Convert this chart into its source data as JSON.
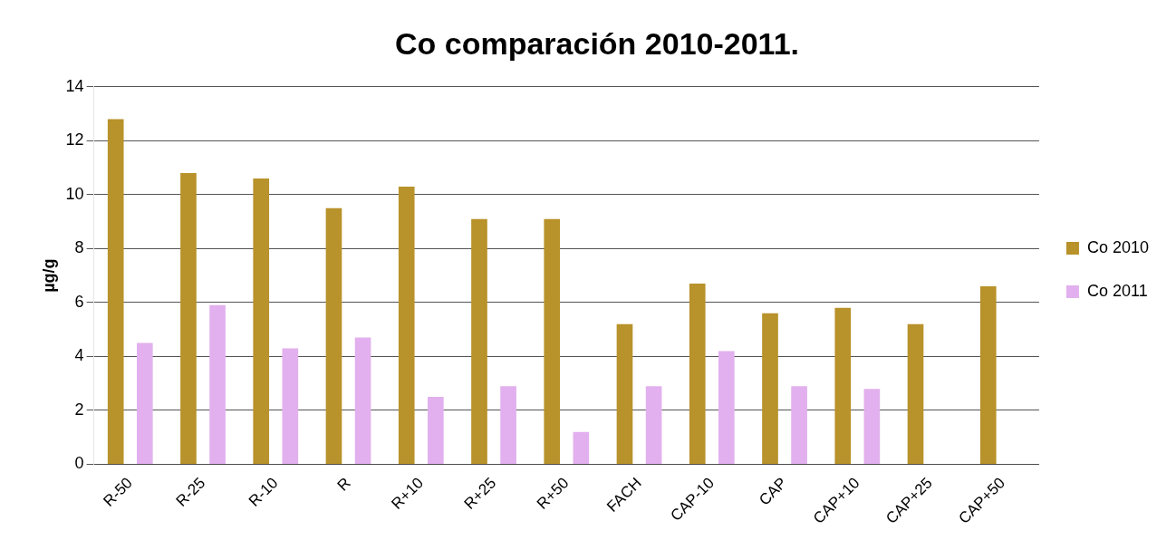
{
  "chart_data": {
    "type": "bar",
    "title": "Co comparación 2010-2011.",
    "ylabel": "µg/g",
    "categories": [
      "R-50",
      "R-25",
      "R-10",
      "R",
      "R+10",
      "R+25",
      "R+50",
      "FACH",
      "CAP-10",
      "CAP",
      "CAP+10",
      "CAP+25",
      "CAP+50"
    ],
    "series": [
      {
        "name": "Co 2010",
        "color": "#b8922a",
        "values": [
          12.8,
          10.8,
          10.6,
          9.5,
          10.3,
          9.1,
          9.1,
          5.2,
          6.7,
          5.6,
          5.8,
          5.2,
          6.6
        ]
      },
      {
        "name": "Co 2011",
        "color": "#e2b0ee",
        "values": [
          4.5,
          5.9,
          4.3,
          4.7,
          2.5,
          2.9,
          1.2,
          2.9,
          4.2,
          2.9,
          2.8,
          0,
          0
        ]
      }
    ],
    "ylim": [
      0,
      14
    ],
    "yticks": [
      0,
      2,
      4,
      6,
      8,
      10,
      12,
      14
    ],
    "grid": "y",
    "legend": "right"
  }
}
